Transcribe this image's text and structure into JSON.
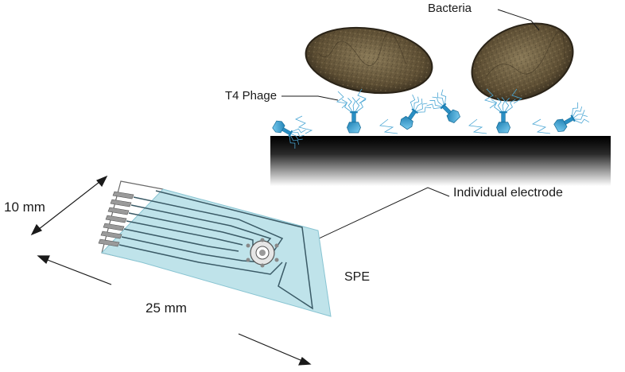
{
  "labels": {
    "bacteria": "Bacteria",
    "t4_phage": "T4 Phage",
    "individual_electrode": "Individual electrode",
    "spe": "SPE",
    "width_dimension": "10 mm",
    "length_dimension": "25 mm"
  },
  "colors": {
    "substrate_fill": "#bfe3ea",
    "trace_stroke": "#3a5a66",
    "phage_blue": "#2a8fc4",
    "bacteria_brown": "#6b5a3e",
    "surface_dark": "#111111"
  }
}
